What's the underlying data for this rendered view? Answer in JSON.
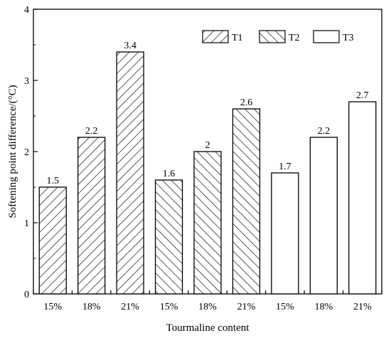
{
  "chart_data": {
    "type": "bar",
    "title": "",
    "xlabel": "Tourmaline content",
    "ylabel": "Softening point difference/(°C)",
    "ylim": [
      0,
      4
    ],
    "yticks": [
      "0",
      "1",
      "2",
      "3",
      "4"
    ],
    "categories": [
      "15%",
      "18%",
      "21%",
      "15%",
      "18%",
      "21%",
      "15%",
      "18%",
      "21%"
    ],
    "series": [
      {
        "name": "T1",
        "pattern": "forward-hatch",
        "values": [
          1.5,
          2.2,
          3.4,
          null,
          null,
          null,
          null,
          null,
          null
        ],
        "labels": [
          "1.5",
          "2.2",
          "3.4"
        ]
      },
      {
        "name": "T2",
        "pattern": "backward-hatch",
        "values": [
          null,
          null,
          null,
          1.6,
          2.0,
          2.6,
          null,
          null,
          null
        ],
        "labels": [
          "1.6",
          "2",
          "2.6"
        ]
      },
      {
        "name": "T3",
        "pattern": "none",
        "values": [
          null,
          null,
          null,
          null,
          null,
          null,
          1.7,
          2.2,
          2.7
        ],
        "labels": [
          "1.7",
          "2.2",
          "2.7"
        ]
      }
    ],
    "legend_position": "top-right",
    "grid": false,
    "colors": {
      "bar_fill": "#ffffff",
      "stroke": "#000000"
    }
  }
}
